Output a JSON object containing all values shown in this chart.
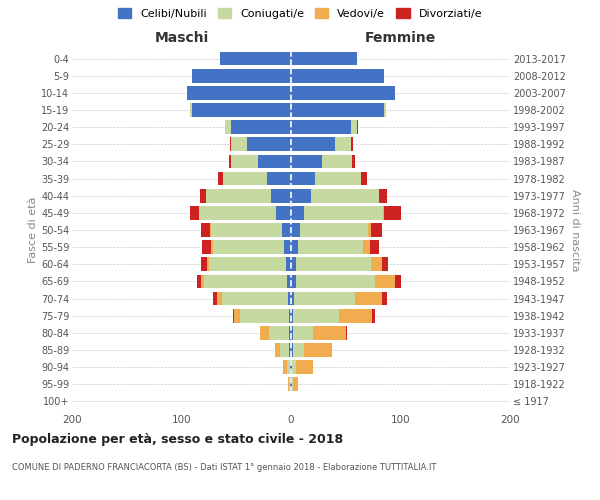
{
  "age_groups": [
    "100+",
    "95-99",
    "90-94",
    "85-89",
    "80-84",
    "75-79",
    "70-74",
    "65-69",
    "60-64",
    "55-59",
    "50-54",
    "45-49",
    "40-44",
    "35-39",
    "30-34",
    "25-29",
    "20-24",
    "15-19",
    "10-14",
    "5-9",
    "0-4"
  ],
  "birth_years": [
    "≤ 1917",
    "1918-1922",
    "1923-1927",
    "1928-1932",
    "1933-1937",
    "1938-1942",
    "1943-1947",
    "1948-1952",
    "1953-1957",
    "1958-1962",
    "1963-1967",
    "1968-1972",
    "1973-1977",
    "1978-1982",
    "1983-1987",
    "1988-1992",
    "1993-1997",
    "1998-2002",
    "2003-2007",
    "2008-2012",
    "2013-2017"
  ],
  "male_celibe": [
    0,
    1,
    1,
    2,
    2,
    2,
    3,
    4,
    5,
    6,
    8,
    14,
    18,
    22,
    30,
    40,
    55,
    90,
    95,
    90,
    65
  ],
  "male_coniugato": [
    0,
    1,
    3,
    8,
    18,
    45,
    60,
    75,
    70,
    65,
    65,
    70,
    60,
    40,
    25,
    15,
    5,
    2,
    0,
    0,
    0
  ],
  "male_vedovo": [
    0,
    1,
    3,
    5,
    8,
    5,
    5,
    3,
    2,
    2,
    1,
    0,
    0,
    0,
    0,
    0,
    0,
    0,
    0,
    0,
    0
  ],
  "male_divorziato": [
    0,
    0,
    0,
    0,
    0,
    1,
    3,
    4,
    5,
    8,
    8,
    8,
    5,
    5,
    2,
    1,
    0,
    0,
    0,
    0,
    0
  ],
  "female_celibe": [
    0,
    1,
    1,
    2,
    2,
    2,
    3,
    5,
    5,
    6,
    8,
    12,
    18,
    22,
    28,
    40,
    55,
    85,
    95,
    85,
    60
  ],
  "female_coniugato": [
    0,
    1,
    4,
    10,
    18,
    42,
    55,
    72,
    68,
    60,
    62,
    72,
    62,
    42,
    28,
    15,
    5,
    2,
    0,
    0,
    0
  ],
  "female_vedovo": [
    0,
    4,
    15,
    25,
    30,
    30,
    25,
    18,
    10,
    6,
    3,
    1,
    0,
    0,
    0,
    0,
    0,
    0,
    0,
    0,
    0
  ],
  "female_divorziato": [
    0,
    0,
    0,
    0,
    1,
    3,
    5,
    5,
    6,
    8,
    10,
    15,
    8,
    5,
    2,
    2,
    1,
    0,
    0,
    0,
    0
  ],
  "colors": {
    "celibe": "#4472C4",
    "coniugato": "#C5D9A0",
    "vedovo": "#F0AC4E",
    "divorziato": "#CC2222"
  },
  "xlim": 200,
  "title": "Popolazione per età, sesso e stato civile - 2018",
  "subtitle": "COMUNE DI PADERNO FRANCIACORTA (BS) - Dati ISTAT 1° gennaio 2018 - Elaborazione TUTTITALIA.IT",
  "ylabel_left": "Fasce di età",
  "ylabel_right": "Anni di nascita",
  "xlabel_male": "Maschi",
  "xlabel_female": "Femmine",
  "legend_labels": [
    "Celibi/Nubili",
    "Coniugati/e",
    "Vedovi/e",
    "Divorziati/e"
  ],
  "background_color": "#ffffff",
  "grid_color": "#cccccc"
}
